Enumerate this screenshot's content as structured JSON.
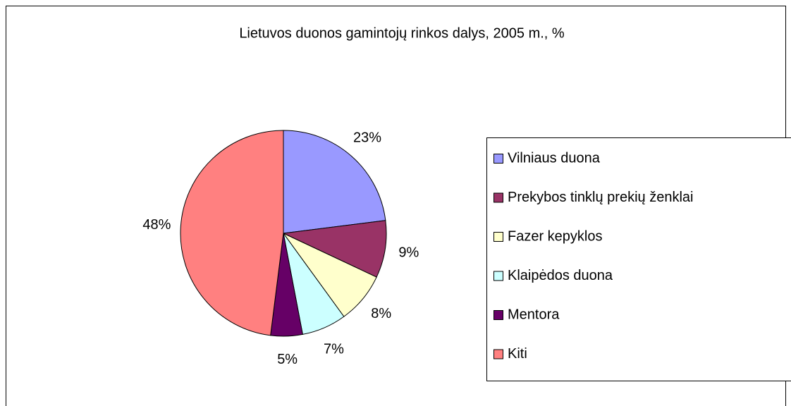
{
  "chart_data": {
    "type": "pie",
    "title": "Lietuvos duonos gamintojų rinkos dalys, 2005 m., %",
    "categories": [
      "Vilniaus duona",
      "Prekybos tinklų prekių ženklai",
      "Fazer kepyklos",
      "Klaipėdos duona",
      "Mentora",
      "Kiti"
    ],
    "values": [
      23,
      9,
      8,
      7,
      5,
      48
    ],
    "value_labels": [
      "23%",
      "9%",
      "8%",
      "7%",
      "5%",
      "48%"
    ],
    "colors": [
      "#9999ff",
      "#993366",
      "#ffffcc",
      "#ccffff",
      "#660066",
      "#ff8080"
    ],
    "legend": "right"
  }
}
